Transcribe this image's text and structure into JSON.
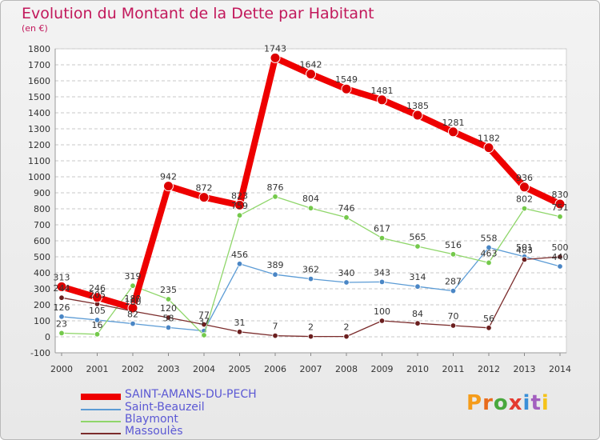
{
  "title": "Evolution du Montant de la Dette par Habitant",
  "subtitle": "(en €)",
  "logo": "Proxiti",
  "colors": {
    "grid": "#c9c9c9",
    "axis_text": "#333333",
    "title": "#c2185b",
    "legend_text": "#5b58d4"
  },
  "chart_data": {
    "type": "line",
    "x": [
      "2000",
      "2001",
      "2002",
      "2003",
      "2004",
      "2005",
      "2006",
      "2007",
      "2008",
      "2009",
      "2010",
      "2011",
      "2012",
      "2013",
      "2014"
    ],
    "ylim": [
      -100,
      1800
    ],
    "yticks": [
      -100,
      0,
      100,
      200,
      300,
      400,
      500,
      600,
      700,
      800,
      900,
      1000,
      1100,
      1200,
      1300,
      1400,
      1500,
      1600,
      1700,
      1800
    ],
    "grid": "horizontal-dashed",
    "legend_position": "bottom-left",
    "series": [
      {
        "name": "Saint-Beauzeil",
        "color": "#5b9bd5",
        "marker": "#4a86c5",
        "values": [
          126,
          105,
          82,
          58,
          37,
          456,
          389,
          362,
          340,
          343,
          314,
          287,
          558,
          501,
          440
        ],
        "labels": [
          "126",
          "105",
          "82",
          "58",
          "37",
          "456",
          "389",
          "362",
          "340",
          "343",
          "314",
          "287",
          "558",
          "501",
          "440"
        ]
      },
      {
        "name": "Blaymont",
        "color": "#8fd66a",
        "marker": "#74c94b",
        "values": [
          23,
          16,
          319,
          235,
          10,
          759,
          876,
          804,
          746,
          617,
          565,
          516,
          463,
          802,
          751
        ],
        "labels": [
          "23",
          "16",
          "319",
          "235",
          "",
          "759",
          "876",
          "804",
          "746",
          "617",
          "565",
          "516",
          "463",
          "802",
          "751"
        ]
      },
      {
        "name": "Massoulès",
        "color": "#7b2c2c",
        "marker": "#6b1f1f",
        "values": [
          244,
          205,
          160,
          120,
          77,
          31,
          7,
          2,
          2,
          100,
          84,
          70,
          56,
          483,
          500
        ],
        "labels": [
          "244",
          "205",
          "160",
          "120",
          "77",
          "31",
          "7",
          "2",
          "2",
          "100",
          "84",
          "70",
          "56",
          "483",
          "500"
        ]
      },
      {
        "name": "SAINT-AMANS-DU-PECH",
        "color": "#ee0000",
        "marker": "#dd0000",
        "values": [
          313,
          246,
          180,
          942,
          872,
          823,
          1743,
          1642,
          1549,
          1481,
          1385,
          1281,
          1182,
          936,
          830
        ],
        "labels": [
          "313",
          "246",
          "180",
          "942",
          "872",
          "823",
          "1743",
          "1642",
          "1549",
          "1481",
          "1385",
          "1281",
          "1182",
          "936",
          "830"
        ]
      }
    ],
    "legend": [
      "SAINT-AMANS-DU-PECH",
      "Saint-Beauzeil",
      "Blaymont",
      "Massoulès"
    ]
  }
}
